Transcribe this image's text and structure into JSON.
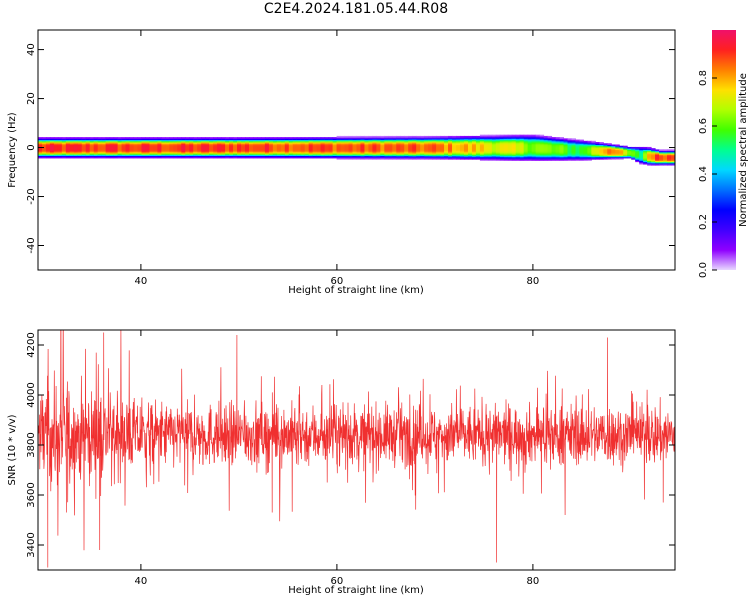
{
  "title": "C2E4.2024.181.05.44.R08",
  "colors": {
    "snr_line": "#f03030",
    "frame": "#000000",
    "colorbar": [
      "#e8d8ff",
      "#8f00ff",
      "#4000ff",
      "#0000ff",
      "#0070ff",
      "#00d8ff",
      "#00ff90",
      "#40ff00",
      "#b0ff00",
      "#ffe000",
      "#ff8000",
      "#ff2020",
      "#f0106a"
    ]
  },
  "chart_data": [
    {
      "type": "heatmap",
      "xlabel": "Height of straight line (km)",
      "ylabel": "Frequency (Hz)",
      "xlim": [
        29.5,
        94.5
      ],
      "ylim": [
        -50,
        48
      ],
      "x_ticks": [
        40,
        60,
        80
      ],
      "y_ticks": [
        -40,
        -20,
        0,
        20,
        40
      ],
      "colorbar": {
        "label": "Normalized spectral amplitude",
        "range": [
          0,
          1
        ],
        "ticks": [
          "0.0",
          "0.2",
          "0.4",
          "0.6",
          "0.8"
        ]
      },
      "ridge": {
        "height_km": [
          29.5,
          50,
          70,
          80,
          85,
          88,
          90,
          91,
          92,
          93,
          94.5
        ],
        "center_hz": [
          0,
          0,
          0,
          0,
          -1,
          -1.5,
          -2,
          -3,
          -3.5,
          -4,
          -4
        ],
        "half_width_hz": [
          3.5,
          3.5,
          3.8,
          4.5,
          3.5,
          2.5,
          2,
          3,
          3,
          2.5,
          2.5
        ],
        "peak_amplitude": [
          0.9,
          0.9,
          0.85,
          0.65,
          0.55,
          0.9,
          0.6,
          0.5,
          0.85,
          0.9,
          0.9
        ]
      }
    },
    {
      "type": "line",
      "xlabel": "Height of straight line (km)",
      "ylabel": "SNR (10 * v/v)",
      "xlim": [
        29.5,
        94.5
      ],
      "ylim": [
        3300,
        4260
      ],
      "x_ticks": [
        40,
        60,
        80
      ],
      "y_ticks": [
        3400,
        3600,
        3800,
        4000,
        4200
      ],
      "series": [
        {
          "mean": 3840,
          "samples_per_km": 33,
          "envelope": {
            "height_km": [
              29.5,
              32,
              35,
              40,
              50,
              60,
              70,
              80,
              90,
              94.5
            ],
            "spread": [
              180,
              200,
              160,
              120,
              110,
              110,
              105,
              105,
              110,
              110
            ]
          },
          "notable_points": [
            {
              "x": 30.5,
              "y": 3310
            },
            {
              "x": 32.4,
              "y": 3530
            },
            {
              "x": 35.8,
              "y": 3380
            },
            {
              "x": 36.2,
              "y": 4250
            },
            {
              "x": 49.8,
              "y": 4240
            },
            {
              "x": 53.4,
              "y": 3530
            },
            {
              "x": 76.3,
              "y": 3330
            },
            {
              "x": 87.6,
              "y": 4230
            },
            {
              "x": 93.3,
              "y": 3570
            }
          ]
        }
      ]
    }
  ]
}
